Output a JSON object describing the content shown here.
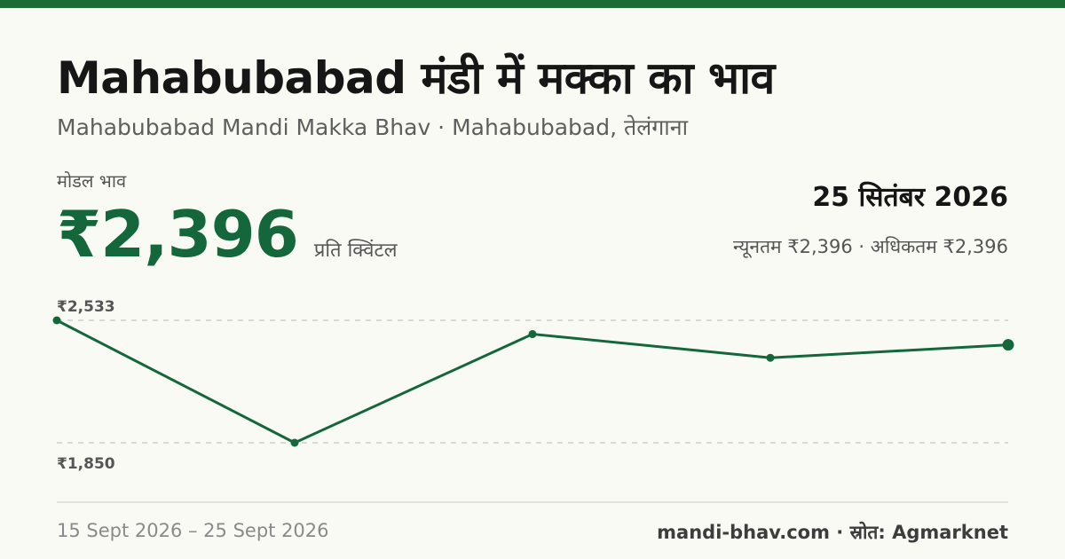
{
  "header": {
    "title": "Mahabubabad मंडी में मक्का का भाव",
    "subtitle": "Mahabubabad Mandi Makka Bhav · Mahabubabad, तेलंगाना"
  },
  "price": {
    "label": "मोडल भाव",
    "value": "₹2,396",
    "unit": "प्रति क्विंटल"
  },
  "summary": {
    "date": "25 सितंबर 2026",
    "minmax": "न्यूनतम ₹2,396 · अधिकतम ₹2,396"
  },
  "footer": {
    "range": "15 Sept 2026 – 25 Sept 2026",
    "source": "mandi-bhav.com · स्रोत: Agmarknet"
  },
  "colors": {
    "accent": "#1a6b35",
    "line": "#14673a"
  },
  "chart_data": {
    "type": "line",
    "title": "",
    "xlabel": "",
    "ylabel": "",
    "ylim": [
      1850,
      2533
    ],
    "y_tick_labels": [
      "₹2,533",
      "₹1,850"
    ],
    "grid": true,
    "series": [
      {
        "values": [
          2533,
          1850,
          2456,
          2324,
          2396
        ]
      }
    ]
  }
}
